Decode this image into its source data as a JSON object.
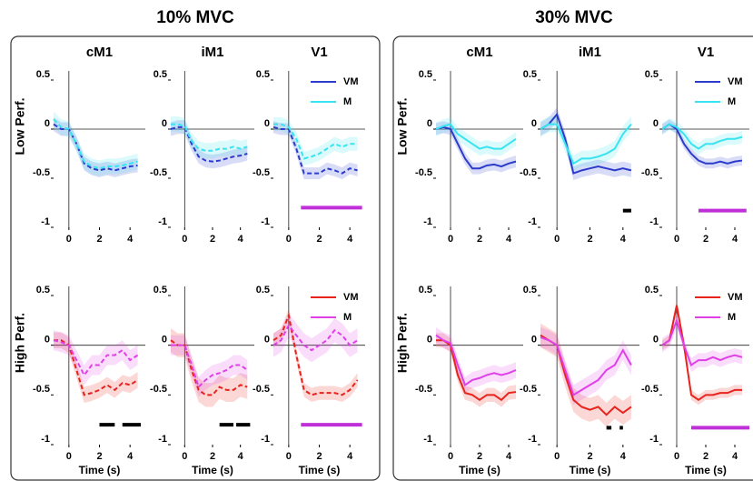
{
  "figure": {
    "titles": [
      "10% MVC",
      "30% MVC"
    ]
  },
  "chart_data": [
    {
      "type": "line",
      "title": "cM1",
      "ylabel": "Low Perf.",
      "x": [
        -1,
        -0.5,
        0,
        0.5,
        1,
        1.5,
        2,
        2.5,
        3,
        3.5,
        4,
        4.5
      ],
      "xlim": [
        -1,
        5
      ],
      "ylim": [
        -1,
        0.5
      ],
      "xticks": [
        0,
        2,
        4
      ],
      "yticks": [
        -1,
        -0.5,
        0,
        0.5
      ],
      "line_style": "dashed",
      "series": [
        {
          "name": "VM",
          "color": "#2b3ccc",
          "error": 0.07,
          "values": [
            0.05,
            0.0,
            0.0,
            -0.15,
            -0.35,
            -0.4,
            -0.42,
            -0.4,
            -0.42,
            -0.4,
            -0.38,
            -0.37
          ]
        },
        {
          "name": "M",
          "color": "#38e4f0",
          "error": 0.08,
          "values": [
            0.1,
            0.02,
            0.0,
            -0.15,
            -0.33,
            -0.38,
            -0.4,
            -0.38,
            -0.38,
            -0.37,
            -0.35,
            -0.33
          ]
        }
      ],
      "sig_bars": []
    },
    {
      "type": "line",
      "title": "iM1",
      "x": [
        -1,
        -0.5,
        0,
        0.5,
        1,
        1.5,
        2,
        2.5,
        3,
        3.5,
        4,
        4.5
      ],
      "xlim": [
        -1,
        5
      ],
      "ylim": [
        -1,
        0.5
      ],
      "xticks": [
        0,
        2,
        4
      ],
      "yticks": [
        -1,
        -0.5,
        0,
        0.5
      ],
      "line_style": "dashed",
      "series": [
        {
          "name": "VM",
          "color": "#2b3ccc",
          "error": 0.07,
          "values": [
            0.0,
            0.02,
            0.02,
            -0.15,
            -0.28,
            -0.32,
            -0.33,
            -0.32,
            -0.3,
            -0.28,
            -0.27,
            -0.25
          ]
        },
        {
          "name": "M",
          "color": "#38e4f0",
          "error": 0.08,
          "values": [
            0.05,
            0.05,
            0.03,
            -0.12,
            -0.2,
            -0.22,
            -0.22,
            -0.2,
            -0.2,
            -0.18,
            -0.2,
            -0.18
          ]
        }
      ],
      "sig_bars": []
    },
    {
      "type": "line",
      "title": "V1",
      "legend": true,
      "x": [
        -1,
        -0.5,
        0,
        0.5,
        1,
        1.5,
        2,
        2.5,
        3,
        3.5,
        4,
        4.5
      ],
      "xlim": [
        -1,
        5
      ],
      "ylim": [
        -1,
        0.5
      ],
      "xticks": [
        0,
        2,
        4
      ],
      "yticks": [
        -1,
        -0.5,
        0,
        0.5
      ],
      "line_style": "dashed",
      "series": [
        {
          "name": "VM",
          "color": "#2b3ccc",
          "error": 0.06,
          "values": [
            0.02,
            0.0,
            0.0,
            -0.2,
            -0.45,
            -0.45,
            -0.45,
            -0.4,
            -0.42,
            -0.45,
            -0.4,
            -0.42
          ]
        },
        {
          "name": "M",
          "color": "#38e4f0",
          "error": 0.07,
          "values": [
            0.05,
            0.05,
            0.02,
            -0.1,
            -0.3,
            -0.28,
            -0.25,
            -0.2,
            -0.15,
            -0.18,
            -0.15,
            -0.15
          ]
        }
      ],
      "sig_bars": [
        {
          "x": [
            0.8,
            4.8
          ],
          "y": -0.8,
          "color": "#c030d8"
        }
      ]
    },
    {
      "type": "line",
      "ylabel": "High Perf.",
      "xlabel": "Time (s)",
      "x": [
        -1,
        -0.5,
        0,
        0.5,
        1,
        1.5,
        2,
        2.5,
        3,
        3.5,
        4,
        4.5
      ],
      "xlim": [
        -1,
        5
      ],
      "ylim": [
        -1,
        0.5
      ],
      "xticks": [
        0,
        2,
        4
      ],
      "yticks": [
        -1,
        -0.5,
        0,
        0.5
      ],
      "line_style": "dashed",
      "series": [
        {
          "name": "VM",
          "color": "#e8231c",
          "error": 0.08,
          "values": [
            0.05,
            0.05,
            0.0,
            -0.25,
            -0.5,
            -0.48,
            -0.45,
            -0.4,
            -0.45,
            -0.38,
            -0.4,
            -0.35
          ]
        },
        {
          "name": "M",
          "color": "#e040e8",
          "error": 0.1,
          "values": [
            0.05,
            0.03,
            0.0,
            -0.15,
            -0.3,
            -0.2,
            -0.2,
            -0.1,
            -0.1,
            -0.05,
            -0.15,
            -0.1
          ]
        }
      ],
      "sig_bars": [
        {
          "x": [
            2,
            3
          ],
          "y": -0.8,
          "color": "#000000"
        },
        {
          "x": [
            3.5,
            4.7
          ],
          "y": -0.8,
          "color": "#000000"
        }
      ]
    },
    {
      "type": "line",
      "xlabel": "Time (s)",
      "x": [
        -1,
        -0.5,
        0,
        0.5,
        1,
        1.5,
        2,
        2.5,
        3,
        3.5,
        4,
        4.5
      ],
      "xlim": [
        -1,
        5
      ],
      "ylim": [
        -1,
        0.5
      ],
      "xticks": [
        0,
        2,
        4
      ],
      "yticks": [
        -1,
        -0.5,
        0,
        0.5
      ],
      "line_style": "dashed",
      "series": [
        {
          "name": "VM",
          "color": "#e8231c",
          "error": 0.12,
          "values": [
            0.05,
            0.0,
            0.0,
            -0.25,
            -0.45,
            -0.5,
            -0.5,
            -0.42,
            -0.45,
            -0.45,
            -0.4,
            -0.42
          ]
        },
        {
          "name": "M",
          "color": "#e040e8",
          "error": 0.1,
          "values": [
            0.0,
            0.0,
            0.0,
            -0.2,
            -0.42,
            -0.35,
            -0.3,
            -0.28,
            -0.25,
            -0.2,
            -0.2,
            -0.25
          ]
        }
      ],
      "sig_bars": [
        {
          "x": [
            2.5,
            3.5
          ],
          "y": -0.8,
          "color": "#000000"
        },
        {
          "x": [
            3.7,
            4.7
          ],
          "y": -0.8,
          "color": "#000000"
        }
      ]
    },
    {
      "type": "line",
      "xlabel": "Time (s)",
      "legend": true,
      "x": [
        -1,
        -0.5,
        0,
        0.5,
        1,
        1.5,
        2,
        2.5,
        3,
        3.5,
        4,
        4.5
      ],
      "xlim": [
        -1,
        5
      ],
      "ylim": [
        -1,
        0.5
      ],
      "xticks": [
        0,
        2,
        4
      ],
      "yticks": [
        -1,
        -0.5,
        0,
        0.5
      ],
      "line_style": "dashed",
      "series": [
        {
          "name": "VM",
          "color": "#e8231c",
          "error": 0.07,
          "values": [
            0.05,
            0.1,
            0.3,
            -0.1,
            -0.45,
            -0.5,
            -0.48,
            -0.48,
            -0.48,
            -0.5,
            -0.45,
            -0.35
          ]
        },
        {
          "name": "M",
          "color": "#e040e8",
          "error": 0.12,
          "values": [
            0.0,
            0.05,
            0.2,
            0.1,
            0.0,
            -0.05,
            0.0,
            0.05,
            0.15,
            0.1,
            0.0,
            0.05
          ]
        }
      ],
      "sig_bars": [
        {
          "x": [
            0.8,
            4.8
          ],
          "y": -0.8,
          "color": "#c030d8"
        }
      ]
    },
    {
      "type": "line",
      "title": "cM1",
      "ylabel": "Low Perf.",
      "x": [
        -1,
        -0.5,
        0,
        0.5,
        1,
        1.5,
        2,
        2.5,
        3,
        3.5,
        4,
        4.5
      ],
      "xlim": [
        -1,
        5
      ],
      "ylim": [
        -1,
        0.5
      ],
      "xticks": [
        0,
        2,
        4
      ],
      "yticks": [
        -1,
        -0.5,
        0,
        0.5
      ],
      "line_style": "solid",
      "series": [
        {
          "name": "VM",
          "color": "#2b3ccc",
          "error": 0.06,
          "values": [
            0.0,
            0.02,
            0.0,
            -0.15,
            -0.3,
            -0.4,
            -0.4,
            -0.37,
            -0.36,
            -0.38,
            -0.35,
            -0.33
          ]
        },
        {
          "name": "M",
          "color": "#38e4f0",
          "error": 0.07,
          "values": [
            0.0,
            0.03,
            0.05,
            -0.05,
            -0.1,
            -0.15,
            -0.2,
            -0.18,
            -0.2,
            -0.2,
            -0.15,
            -0.1
          ]
        }
      ],
      "sig_bars": []
    },
    {
      "type": "line",
      "title": "iM1",
      "x": [
        -1,
        -0.5,
        0,
        0.5,
        1,
        1.5,
        2,
        2.5,
        3,
        3.5,
        4,
        4.5
      ],
      "xlim": [
        -1,
        5
      ],
      "ylim": [
        -1,
        0.5
      ],
      "xticks": [
        0,
        2,
        4
      ],
      "yticks": [
        -1,
        -0.5,
        0,
        0.5
      ],
      "line_style": "solid",
      "series": [
        {
          "name": "VM",
          "color": "#2b3ccc",
          "error": 0.07,
          "values": [
            0.0,
            0.05,
            0.15,
            -0.1,
            -0.45,
            -0.42,
            -0.4,
            -0.38,
            -0.4,
            -0.42,
            -0.4,
            -0.42
          ]
        },
        {
          "name": "M",
          "color": "#38e4f0",
          "error": 0.08,
          "values": [
            0.0,
            0.05,
            0.05,
            -0.15,
            -0.35,
            -0.3,
            -0.3,
            -0.28,
            -0.25,
            -0.2,
            -0.05,
            0.05
          ]
        }
      ],
      "sig_bars": [
        {
          "x": [
            4,
            4.5
          ],
          "y": -0.83,
          "color": "#000000"
        }
      ]
    },
    {
      "type": "line",
      "title": "V1",
      "legend": true,
      "x": [
        -1,
        -0.5,
        0,
        0.5,
        1,
        1.5,
        2,
        2.5,
        3,
        3.5,
        4,
        4.5
      ],
      "xlim": [
        -1,
        5
      ],
      "ylim": [
        -1,
        0.5
      ],
      "xticks": [
        0,
        2,
        4
      ],
      "yticks": [
        -1,
        -0.5,
        0,
        0.5
      ],
      "line_style": "solid",
      "series": [
        {
          "name": "VM",
          "color": "#2b3ccc",
          "error": 0.05,
          "values": [
            0.0,
            0.05,
            0.0,
            -0.15,
            -0.25,
            -0.32,
            -0.35,
            -0.35,
            -0.33,
            -0.35,
            -0.33,
            -0.32
          ]
        },
        {
          "name": "M",
          "color": "#38e4f0",
          "error": 0.06,
          "values": [
            0.0,
            0.05,
            0.02,
            -0.05,
            -0.15,
            -0.2,
            -0.15,
            -0.15,
            -0.12,
            -0.1,
            -0.1,
            -0.08
          ]
        }
      ],
      "sig_bars": [
        {
          "x": [
            1.5,
            4.8
          ],
          "y": -0.83,
          "color": "#c030d8"
        }
      ]
    },
    {
      "type": "line",
      "ylabel": "High Perf.",
      "xlabel": "Time (s)",
      "x": [
        -1,
        -0.5,
        0,
        0.5,
        1,
        1.5,
        2,
        2.5,
        3,
        3.5,
        4,
        4.5
      ],
      "xlim": [
        -1,
        5
      ],
      "ylim": [
        -1,
        0.5
      ],
      "xticks": [
        0,
        2,
        4
      ],
      "yticks": [
        -1,
        -0.5,
        0,
        0.5
      ],
      "line_style": "solid",
      "series": [
        {
          "name": "VM",
          "color": "#e8231c",
          "error": 0.07,
          "values": [
            0.05,
            0.05,
            0.0,
            -0.3,
            -0.48,
            -0.5,
            -0.55,
            -0.5,
            -0.5,
            -0.55,
            -0.48,
            -0.47
          ]
        },
        {
          "name": "M",
          "color": "#e040e8",
          "error": 0.08,
          "values": [
            0.1,
            0.05,
            0.02,
            -0.2,
            -0.4,
            -0.35,
            -0.33,
            -0.3,
            -0.28,
            -0.3,
            -0.28,
            -0.25
          ]
        }
      ],
      "sig_bars": []
    },
    {
      "type": "line",
      "xlabel": "Time (s)",
      "x": [
        -1,
        -0.5,
        0,
        0.5,
        1,
        1.5,
        2,
        2.5,
        3,
        3.5,
        4,
        4.5
      ],
      "xlim": [
        -1,
        5
      ],
      "ylim": [
        -1,
        0.5
      ],
      "xticks": [
        0,
        2,
        4
      ],
      "yticks": [
        -1,
        -0.5,
        0,
        0.5
      ],
      "line_style": "solid",
      "series": [
        {
          "name": "VM",
          "color": "#e8231c",
          "error": 0.12,
          "values": [
            0.1,
            0.05,
            0.0,
            -0.3,
            -0.55,
            -0.62,
            -0.65,
            -0.62,
            -0.7,
            -0.62,
            -0.68,
            -0.62
          ]
        },
        {
          "name": "M",
          "color": "#e040e8",
          "error": 0.1,
          "values": [
            0.08,
            0.05,
            0.0,
            -0.25,
            -0.5,
            -0.45,
            -0.4,
            -0.35,
            -0.25,
            -0.2,
            -0.05,
            -0.2
          ]
        }
      ],
      "sig_bars": [
        {
          "x": [
            3.0,
            3.3
          ],
          "y": -0.83,
          "color": "#000000"
        },
        {
          "x": [
            3.8,
            4.0
          ],
          "y": -0.83,
          "color": "#000000"
        }
      ]
    },
    {
      "type": "line",
      "xlabel": "Time (s)",
      "legend": true,
      "x": [
        -1,
        -0.5,
        0,
        0.5,
        1,
        1.5,
        2,
        2.5,
        3,
        3.5,
        4,
        4.5
      ],
      "xlim": [
        -1,
        5
      ],
      "ylim": [
        -1,
        0.5
      ],
      "xticks": [
        0,
        2,
        4
      ],
      "yticks": [
        -1,
        -0.5,
        0,
        0.5
      ],
      "line_style": "solid",
      "series": [
        {
          "name": "VM",
          "color": "#e8231c",
          "error": 0.05,
          "values": [
            0.0,
            0.05,
            0.4,
            0.0,
            -0.5,
            -0.55,
            -0.5,
            -0.5,
            -0.48,
            -0.48,
            -0.45,
            -0.45
          ]
        },
        {
          "name": "M",
          "color": "#e040e8",
          "error": 0.07,
          "values": [
            0.0,
            0.05,
            0.25,
            0.0,
            -0.2,
            -0.15,
            -0.15,
            -0.12,
            -0.15,
            -0.12,
            -0.1,
            -0.12
          ]
        }
      ],
      "sig_bars": [
        {
          "x": [
            1.0,
            5.0
          ],
          "y": -0.83,
          "color": "#c030d8"
        }
      ]
    }
  ]
}
